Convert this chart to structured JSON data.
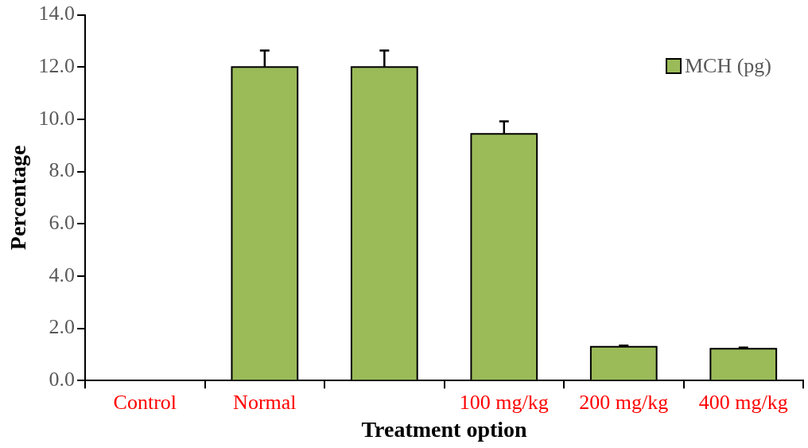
{
  "chart_data": {
    "type": "bar",
    "xlabel": "Treatment option",
    "ylabel": "Percentage",
    "categories": [
      "Control",
      "Normal",
      null,
      "100 mg/kg",
      "200 mg/kg",
      "400 mg/kg"
    ],
    "series": [
      {
        "name": "MCH (pg)",
        "color": "#9bbb59",
        "values": [
          0,
          12.0,
          12.0,
          9.44,
          1.29,
          1.22
        ],
        "errors": [
          null,
          [
            12.0,
            12.63
          ],
          [
            12.0,
            12.63
          ],
          [
            9.44,
            9.92
          ],
          [
            1.29,
            1.34
          ],
          [
            1.22,
            1.26
          ]
        ]
      }
    ],
    "ylim": [
      0,
      14
    ],
    "yticks": [
      {
        "value": 0,
        "label": "0.0"
      },
      {
        "value": 2,
        "label": "2.0"
      },
      {
        "value": 4,
        "label": "4.0"
      },
      {
        "value": 6,
        "label": "6.0"
      },
      {
        "value": 8,
        "label": "8.0"
      },
      {
        "value": 10,
        "label": "10.0"
      },
      {
        "value": 12,
        "label": "12.0"
      },
      {
        "value": 14,
        "label": "14.0"
      }
    ],
    "grid": false,
    "legend": "top right"
  }
}
